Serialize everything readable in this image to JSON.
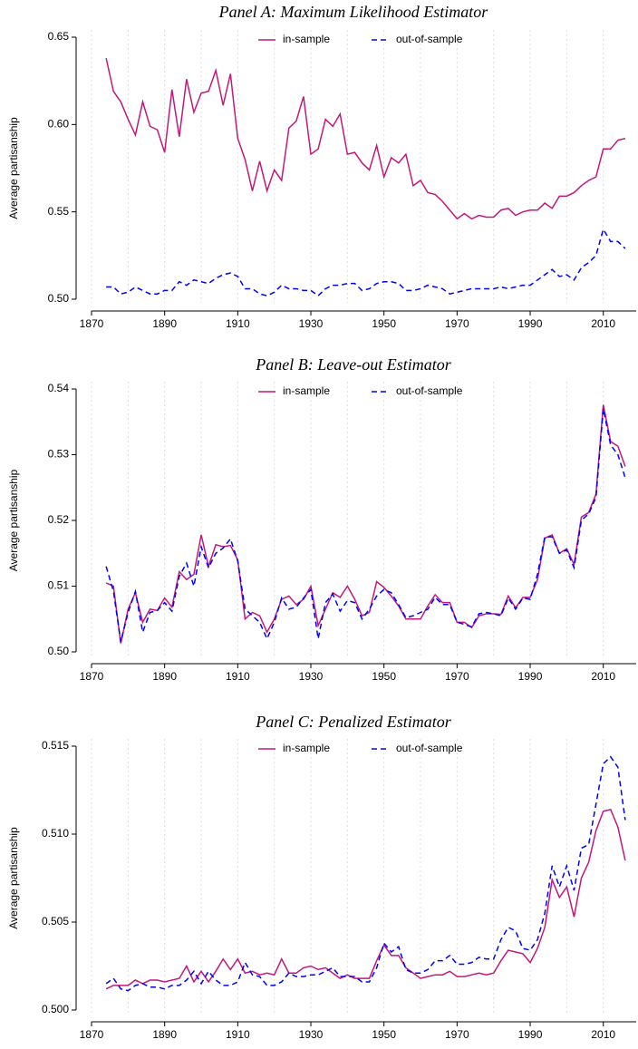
{
  "chart_data": [
    {
      "type": "line",
      "title": "Panel A: Maximum Likelihood Estimator",
      "ylabel": "Average partisanship",
      "x": [
        1874,
        1876,
        1878,
        1880,
        1882,
        1884,
        1886,
        1888,
        1890,
        1892,
        1894,
        1896,
        1898,
        1900,
        1902,
        1904,
        1906,
        1908,
        1910,
        1912,
        1914,
        1916,
        1918,
        1920,
        1922,
        1924,
        1926,
        1928,
        1930,
        1932,
        1934,
        1936,
        1938,
        1940,
        1942,
        1944,
        1946,
        1948,
        1950,
        1952,
        1954,
        1956,
        1958,
        1960,
        1962,
        1964,
        1966,
        1968,
        1970,
        1972,
        1974,
        1976,
        1978,
        1980,
        1982,
        1984,
        1986,
        1988,
        1990,
        1992,
        1994,
        1996,
        1998,
        2000,
        2002,
        2004,
        2006,
        2008,
        2010,
        2012,
        2014,
        2016
      ],
      "series": [
        {
          "name": "in-sample",
          "color": "#c2187a",
          "dashed": false,
          "values": [
            0.638,
            0.619,
            0.613,
            0.603,
            0.594,
            0.613,
            0.599,
            0.597,
            0.584,
            0.62,
            0.593,
            0.626,
            0.607,
            0.618,
            0.619,
            0.631,
            0.611,
            0.629,
            0.592,
            0.58,
            0.562,
            0.579,
            0.562,
            0.574,
            0.568,
            0.598,
            0.602,
            0.616,
            0.583,
            0.586,
            0.603,
            0.599,
            0.606,
            0.583,
            0.584,
            0.578,
            0.574,
            0.588,
            0.57,
            0.581,
            0.578,
            0.583,
            0.565,
            0.568,
            0.561,
            0.56,
            0.556,
            0.551,
            0.546,
            0.549,
            0.546,
            0.548,
            0.547,
            0.547,
            0.551,
            0.552,
            0.548,
            0.55,
            0.551,
            0.551,
            0.555,
            0.552,
            0.559,
            0.559,
            0.561,
            0.565,
            0.568,
            0.57,
            0.586,
            0.586,
            0.591,
            0.592
          ]
        },
        {
          "name": "out-of-sample",
          "color": "#0000ff",
          "dashed": true,
          "values": [
            0.507,
            0.507,
            0.503,
            0.504,
            0.507,
            0.505,
            0.503,
            0.503,
            0.505,
            0.505,
            0.51,
            0.508,
            0.511,
            0.51,
            0.509,
            0.512,
            0.514,
            0.515,
            0.513,
            0.506,
            0.506,
            0.503,
            0.502,
            0.504,
            0.508,
            0.506,
            0.506,
            0.505,
            0.505,
            0.502,
            0.506,
            0.508,
            0.508,
            0.509,
            0.509,
            0.505,
            0.506,
            0.509,
            0.51,
            0.51,
            0.509,
            0.505,
            0.505,
            0.506,
            0.508,
            0.507,
            0.506,
            0.503,
            0.504,
            0.505,
            0.506,
            0.506,
            0.506,
            0.506,
            0.507,
            0.506,
            0.507,
            0.508,
            0.508,
            0.511,
            0.514,
            0.517,
            0.513,
            0.514,
            0.511,
            0.518,
            0.521,
            0.525,
            0.54,
            0.533,
            0.533,
            0.529
          ]
        }
      ],
      "xlim": [
        1870,
        2019
      ],
      "xticks": [
        1870,
        1890,
        1910,
        1930,
        1950,
        1970,
        1990,
        2010
      ],
      "xgrid": [
        1870,
        1880,
        1890,
        1900,
        1910,
        1920,
        1930,
        1940,
        1950,
        1960,
        1970,
        1980,
        1990,
        2000,
        2010
      ],
      "ylim": [
        0.5,
        0.65
      ],
      "yticks": [
        {
          "value": 0.5,
          "label": "0.50"
        },
        0.55,
        {
          "value": 0.6,
          "label": "0.60"
        },
        0.65
      ],
      "legend": "top"
    },
    {
      "type": "line",
      "title": "Panel B: Leave-out Estimator",
      "ylabel": "Average partisanship",
      "x": [
        1874,
        1876,
        1878,
        1880,
        1882,
        1884,
        1886,
        1888,
        1890,
        1892,
        1894,
        1896,
        1898,
        1900,
        1902,
        1904,
        1906,
        1908,
        1910,
        1912,
        1914,
        1916,
        1918,
        1920,
        1922,
        1924,
        1926,
        1928,
        1930,
        1932,
        1934,
        1936,
        1938,
        1940,
        1942,
        1944,
        1946,
        1948,
        1950,
        1952,
        1954,
        1956,
        1958,
        1960,
        1962,
        1964,
        1966,
        1968,
        1970,
        1972,
        1974,
        1976,
        1978,
        1980,
        1982,
        1984,
        1986,
        1988,
        1990,
        1992,
        1994,
        1996,
        1998,
        2000,
        2002,
        2004,
        2006,
        2008,
        2010,
        2012,
        2014,
        2016
      ],
      "series": [
        {
          "name": "in-sample",
          "color": "#c2187a",
          "dashed": false,
          "values": [
            0.5105,
            0.51,
            0.5013,
            0.5065,
            0.509,
            0.5045,
            0.5065,
            0.5063,
            0.5082,
            0.5068,
            0.5122,
            0.511,
            0.5118,
            0.5178,
            0.513,
            0.5163,
            0.516,
            0.5162,
            0.514,
            0.505,
            0.506,
            0.5055,
            0.503,
            0.505,
            0.508,
            0.5085,
            0.5072,
            0.508,
            0.51,
            0.504,
            0.5065,
            0.509,
            0.5083,
            0.51,
            0.508,
            0.5055,
            0.506,
            0.5107,
            0.5098,
            0.5085,
            0.507,
            0.505,
            0.505,
            0.505,
            0.507,
            0.5087,
            0.5075,
            0.5075,
            0.5045,
            0.5045,
            0.5037,
            0.5055,
            0.5058,
            0.5058,
            0.5057,
            0.5085,
            0.5067,
            0.5083,
            0.5083,
            0.511,
            0.5173,
            0.5178,
            0.515,
            0.5157,
            0.5133,
            0.5205,
            0.5212,
            0.524,
            0.5376,
            0.532,
            0.5313,
            0.5282
          ]
        },
        {
          "name": "out-of-sample",
          "color": "#0000ff",
          "dashed": true,
          "values": [
            0.513,
            0.5092,
            0.5015,
            0.506,
            0.5092,
            0.503,
            0.506,
            0.5063,
            0.5075,
            0.5062,
            0.5115,
            0.5135,
            0.51,
            0.516,
            0.5128,
            0.515,
            0.5158,
            0.5172,
            0.5138,
            0.5065,
            0.5055,
            0.5045,
            0.502,
            0.5045,
            0.5082,
            0.5065,
            0.5068,
            0.5082,
            0.5095,
            0.502,
            0.5075,
            0.5088,
            0.5062,
            0.5078,
            0.5075,
            0.505,
            0.5065,
            0.5085,
            0.5095,
            0.509,
            0.5072,
            0.5052,
            0.5055,
            0.506,
            0.5065,
            0.5083,
            0.5072,
            0.5072,
            0.5045,
            0.5042,
            0.5038,
            0.5058,
            0.506,
            0.5058,
            0.5055,
            0.5082,
            0.5065,
            0.5082,
            0.508,
            0.5118,
            0.5175,
            0.5175,
            0.515,
            0.5155,
            0.5128,
            0.52,
            0.521,
            0.5235,
            0.537,
            0.5315,
            0.53,
            0.5265
          ]
        }
      ],
      "xlim": [
        1870,
        2019
      ],
      "xticks": [
        1870,
        1890,
        1910,
        1930,
        1950,
        1970,
        1990,
        2010
      ],
      "xgrid": [
        1870,
        1880,
        1890,
        1900,
        1910,
        1920,
        1930,
        1940,
        1950,
        1960,
        1970,
        1980,
        1990,
        2000,
        2010
      ],
      "ylim": [
        0.5,
        0.54
      ],
      "yticks": [
        {
          "value": 0.5,
          "label": "0.50"
        },
        0.51,
        0.52,
        0.53,
        0.54
      ],
      "legend": "top"
    },
    {
      "type": "line",
      "title": "Panel C: Penalized Estimator",
      "ylabel": "Average partisanship",
      "x": [
        1874,
        1876,
        1878,
        1880,
        1882,
        1884,
        1886,
        1888,
        1890,
        1892,
        1894,
        1896,
        1898,
        1900,
        1902,
        1904,
        1906,
        1908,
        1910,
        1912,
        1914,
        1916,
        1918,
        1920,
        1922,
        1924,
        1926,
        1928,
        1930,
        1932,
        1934,
        1936,
        1938,
        1940,
        1942,
        1944,
        1946,
        1948,
        1950,
        1952,
        1954,
        1956,
        1958,
        1960,
        1962,
        1964,
        1966,
        1968,
        1970,
        1972,
        1974,
        1976,
        1978,
        1980,
        1982,
        1984,
        1986,
        1988,
        1990,
        1992,
        1994,
        1996,
        1998,
        2000,
        2002,
        2004,
        2006,
        2008,
        2010,
        2012,
        2014,
        2016
      ],
      "series": [
        {
          "name": "in-sample",
          "color": "#c2187a",
          "dashed": false,
          "values": [
            0.5012,
            0.5014,
            0.5014,
            0.5014,
            0.5017,
            0.5015,
            0.5017,
            0.5017,
            0.5016,
            0.5017,
            0.5018,
            0.5025,
            0.5016,
            0.5022,
            0.5016,
            0.5022,
            0.5029,
            0.5023,
            0.5029,
            0.5021,
            0.5022,
            0.502,
            0.5021,
            0.502,
            0.5029,
            0.5021,
            0.5021,
            0.5024,
            0.5025,
            0.5023,
            0.5024,
            0.5021,
            0.5018,
            0.502,
            0.5018,
            0.5018,
            0.5018,
            0.5028,
            0.5037,
            0.5031,
            0.5031,
            0.5024,
            0.5021,
            0.5018,
            0.5019,
            0.502,
            0.502,
            0.5022,
            0.5019,
            0.5019,
            0.502,
            0.5021,
            0.502,
            0.5021,
            0.5028,
            0.5034,
            0.5033,
            0.5032,
            0.5027,
            0.5035,
            0.5047,
            0.5074,
            0.5064,
            0.507,
            0.5053,
            0.5075,
            0.5084,
            0.5102,
            0.5113,
            0.5114,
            0.5104,
            0.5085
          ]
        },
        {
          "name": "out-of-sample",
          "color": "#0000ff",
          "dashed": true,
          "values": [
            0.5015,
            0.5018,
            0.5012,
            0.5011,
            0.5014,
            0.5015,
            0.5013,
            0.5013,
            0.5012,
            0.5014,
            0.5014,
            0.5017,
            0.5022,
            0.5015,
            0.5022,
            0.5017,
            0.5014,
            0.5014,
            0.5016,
            0.5027,
            0.502,
            0.5019,
            0.5014,
            0.5014,
            0.5016,
            0.5021,
            0.5019,
            0.5019,
            0.502,
            0.502,
            0.5022,
            0.5024,
            0.5019,
            0.5019,
            0.5019,
            0.5016,
            0.5016,
            0.5024,
            0.5038,
            0.5033,
            0.5036,
            0.5023,
            0.5021,
            0.5021,
            0.5023,
            0.5028,
            0.5028,
            0.5031,
            0.5026,
            0.5026,
            0.5027,
            0.503,
            0.5029,
            0.5029,
            0.504,
            0.5047,
            0.5045,
            0.5035,
            0.5034,
            0.504,
            0.5055,
            0.5082,
            0.507,
            0.5082,
            0.5068,
            0.5092,
            0.5094,
            0.5117,
            0.514,
            0.5144,
            0.5138,
            0.5108
          ]
        }
      ],
      "xlim": [
        1870,
        2019
      ],
      "xticks": [
        1870,
        1890,
        1910,
        1930,
        1950,
        1970,
        1990,
        2010
      ],
      "xgrid": [
        1870,
        1880,
        1890,
        1900,
        1910,
        1920,
        1930,
        1940,
        1950,
        1960,
        1970,
        1980,
        1990,
        2000,
        2010
      ],
      "ylim": [
        0.5,
        0.515
      ],
      "yticks": [
        {
          "value": 0.5,
          "label": "0.500"
        },
        0.505,
        {
          "value": 0.51,
          "label": "0.510"
        },
        0.515
      ],
      "legend": "top"
    }
  ]
}
